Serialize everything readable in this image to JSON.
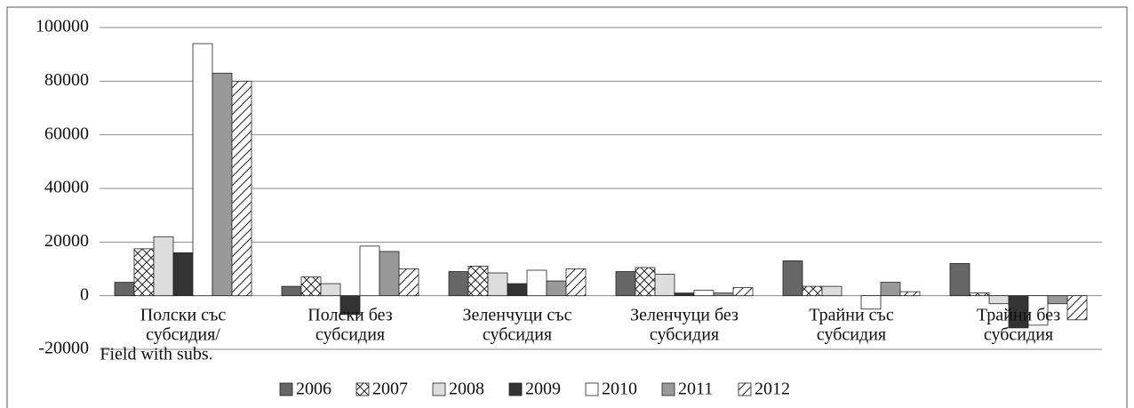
{
  "chart_data": {
    "type": "bar",
    "categories": [
      [
        "Полски със",
        "субсидия/",
        "Field with subs."
      ],
      [
        "Полски без",
        "субсидия"
      ],
      [
        "Зеленчуци със",
        "субсидия"
      ],
      [
        "Зеленчуци без",
        "субсидия"
      ],
      [
        "Трайни със",
        "субсидия"
      ],
      [
        "Трайни без",
        "субсидия"
      ]
    ],
    "series": [
      {
        "name": "2006",
        "color": "#666666",
        "pattern": "solid",
        "values": [
          5000,
          3500,
          9000,
          9000,
          13000,
          12000
        ]
      },
      {
        "name": "2007",
        "color": "#ffffff",
        "pattern": "cross",
        "values": [
          17500,
          7000,
          11000,
          10500,
          3500,
          1000
        ]
      },
      {
        "name": "2008",
        "color": "#dddddd",
        "pattern": "solid",
        "values": [
          22000,
          4500,
          8500,
          8000,
          3500,
          -3000
        ]
      },
      {
        "name": "2009",
        "color": "#333333",
        "pattern": "solid",
        "values": [
          16000,
          -7000,
          4500,
          1000,
          0,
          -12000
        ]
      },
      {
        "name": "2010",
        "color": "#ffffff",
        "pattern": "solid",
        "values": [
          94000,
          18500,
          9500,
          2000,
          -5000,
          -11000
        ]
      },
      {
        "name": "2011",
        "color": "#999999",
        "pattern": "solid",
        "values": [
          83000,
          16500,
          5500,
          1000,
          5000,
          -3000
        ]
      },
      {
        "name": "2012",
        "color": "#ffffff",
        "pattern": "diagonal",
        "values": [
          80000,
          10000,
          10000,
          3000,
          1500,
          -9000
        ]
      }
    ],
    "ylim": [
      -20000,
      100000
    ],
    "yticks": [
      -20000,
      0,
      20000,
      40000,
      60000,
      80000,
      100000
    ],
    "grid": true,
    "legend": "bottom"
  }
}
